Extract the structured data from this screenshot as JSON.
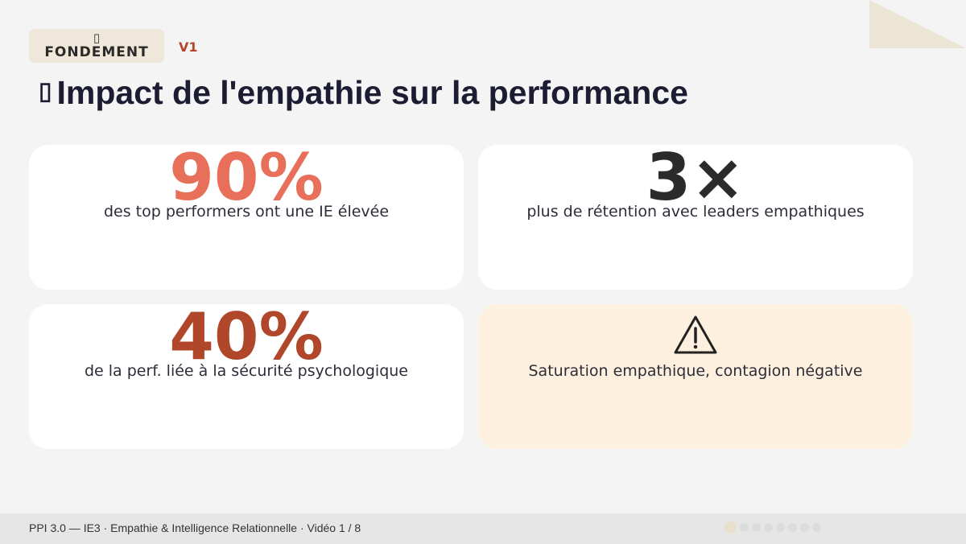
{
  "header": {
    "badge_icon": "▯",
    "badge_label": "FONDEMENT",
    "version": "V1",
    "title_icon": "▯",
    "title": "Impact de l'empathie sur la performance"
  },
  "cards": [
    {
      "stat": "90%",
      "description": "des top performers ont une IE élevée",
      "stat_color": "#e8705a"
    },
    {
      "stat": "3×",
      "description": "plus de rétention avec leaders empathiques",
      "stat_color": "#2b2b2b"
    },
    {
      "stat": "40%",
      "description": "de la perf. liée à la sécurité psychologique",
      "stat_color": "#b0472b"
    },
    {
      "icon": "warning-icon",
      "description": "Saturation empathique, contagion négative"
    }
  ],
  "footer": {
    "text": "PPI 3.0 — IE3 · Empathie & Intelligence Relationnelle · Vidéo 1 / 8",
    "current_video": 1,
    "total_videos": 8
  },
  "colors": {
    "accent": "#b5452b",
    "badge_bg": "#efe7da",
    "warn_card_bg": "#fdf0df",
    "corner_shape": "#ece5d6"
  }
}
